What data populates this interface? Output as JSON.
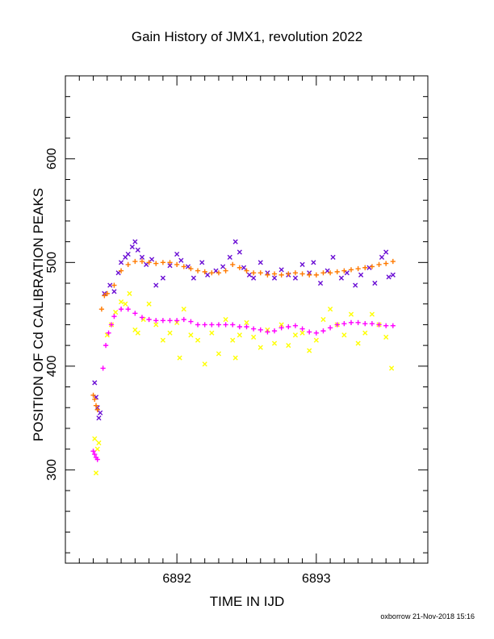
{
  "colors": {
    "frame": "#000000",
    "purple": "#6a0dd4",
    "orange": "#ff7a00",
    "yellow": "#ffff00",
    "magenta": "#ff00ff"
  },
  "chart_data": {
    "type": "scatter",
    "title": "Gain History of JMX1, revolution 2022",
    "xlabel": "TIME IN IJD",
    "ylabel": "POSITION OF Cd CALIBRATION PEAKS",
    "xlim": [
      6891.2,
      6893.8
    ],
    "ylim": [
      210,
      680
    ],
    "x_ticks": [
      6892,
      6893
    ],
    "y_ticks": [
      300,
      400,
      500,
      600
    ],
    "grid": false,
    "series": [
      {
        "marker": "x",
        "color": "#6a0dd4",
        "points": [
          [
            6891.41,
            384
          ],
          [
            6891.42,
            370
          ],
          [
            6891.43,
            360
          ],
          [
            6891.44,
            350
          ],
          [
            6891.45,
            355
          ],
          [
            6891.48,
            470
          ],
          [
            6891.52,
            478
          ],
          [
            6891.55,
            472
          ],
          [
            6891.58,
            490
          ],
          [
            6891.6,
            500
          ],
          [
            6891.63,
            505
          ],
          [
            6891.65,
            508
          ],
          [
            6891.68,
            515
          ],
          [
            6891.7,
            520
          ],
          [
            6891.72,
            512
          ],
          [
            6891.75,
            505
          ],
          [
            6891.78,
            498
          ],
          [
            6891.82,
            503
          ],
          [
            6891.85,
            478
          ],
          [
            6891.9,
            485
          ],
          [
            6891.95,
            497
          ],
          [
            6892.0,
            508
          ],
          [
            6892.03,
            502
          ],
          [
            6892.08,
            496
          ],
          [
            6892.12,
            485
          ],
          [
            6892.18,
            500
          ],
          [
            6892.22,
            488
          ],
          [
            6892.28,
            492
          ],
          [
            6892.33,
            496
          ],
          [
            6892.38,
            505
          ],
          [
            6892.42,
            520
          ],
          [
            6892.45,
            510
          ],
          [
            6892.48,
            495
          ],
          [
            6892.52,
            488
          ],
          [
            6892.55,
            485
          ],
          [
            6892.6,
            500
          ],
          [
            6892.65,
            490
          ],
          [
            6892.7,
            485
          ],
          [
            6892.75,
            493
          ],
          [
            6892.8,
            488
          ],
          [
            6892.85,
            485
          ],
          [
            6892.9,
            498
          ],
          [
            6892.95,
            490
          ],
          [
            6892.98,
            500
          ],
          [
            6893.03,
            480
          ],
          [
            6893.08,
            492
          ],
          [
            6893.12,
            505
          ],
          [
            6893.18,
            485
          ],
          [
            6893.22,
            490
          ],
          [
            6893.28,
            478
          ],
          [
            6893.32,
            488
          ],
          [
            6893.38,
            495
          ],
          [
            6893.42,
            480
          ],
          [
            6893.47,
            505
          ],
          [
            6893.5,
            510
          ],
          [
            6893.52,
            486
          ],
          [
            6893.55,
            488
          ]
        ]
      },
      {
        "marker": "x",
        "color": "#ffff00",
        "points": [
          [
            6891.41,
            330
          ],
          [
            6891.42,
            297
          ],
          [
            6891.43,
            320
          ],
          [
            6891.44,
            326
          ],
          [
            6891.5,
            430
          ],
          [
            6891.53,
            440
          ],
          [
            6891.56,
            452
          ],
          [
            6891.6,
            462
          ],
          [
            6891.63,
            460
          ],
          [
            6891.66,
            470
          ],
          [
            6891.7,
            435
          ],
          [
            6891.72,
            432
          ],
          [
            6891.76,
            445
          ],
          [
            6891.8,
            460
          ],
          [
            6891.85,
            440
          ],
          [
            6891.9,
            425
          ],
          [
            6891.95,
            432
          ],
          [
            6892.0,
            442
          ],
          [
            6892.02,
            408
          ],
          [
            6892.05,
            455
          ],
          [
            6892.1,
            430
          ],
          [
            6892.15,
            425
          ],
          [
            6892.2,
            402
          ],
          [
            6892.25,
            432
          ],
          [
            6892.3,
            412
          ],
          [
            6892.35,
            445
          ],
          [
            6892.4,
            425
          ],
          [
            6892.42,
            408
          ],
          [
            6892.45,
            430
          ],
          [
            6892.5,
            442
          ],
          [
            6892.55,
            428
          ],
          [
            6892.6,
            418
          ],
          [
            6892.65,
            435
          ],
          [
            6892.7,
            422
          ],
          [
            6892.75,
            440
          ],
          [
            6892.8,
            420
          ],
          [
            6892.85,
            430
          ],
          [
            6892.9,
            432
          ],
          [
            6892.95,
            415
          ],
          [
            6893.0,
            425
          ],
          [
            6893.05,
            445
          ],
          [
            6893.1,
            455
          ],
          [
            6893.15,
            440
          ],
          [
            6893.2,
            430
          ],
          [
            6893.25,
            450
          ],
          [
            6893.3,
            422
          ],
          [
            6893.35,
            432
          ],
          [
            6893.4,
            450
          ],
          [
            6893.45,
            440
          ],
          [
            6893.5,
            428
          ],
          [
            6893.54,
            398
          ]
        ]
      },
      {
        "marker": "+",
        "color": "#ff7a00",
        "points": [
          [
            6891.4,
            372
          ],
          [
            6891.41,
            368
          ],
          [
            6891.42,
            362
          ],
          [
            6891.43,
            358
          ],
          [
            6891.46,
            455
          ],
          [
            6891.48,
            468
          ],
          [
            6891.5,
            470
          ],
          [
            6891.55,
            478
          ],
          [
            6891.6,
            492
          ],
          [
            6891.65,
            498
          ],
          [
            6891.7,
            501
          ],
          [
            6891.75,
            501
          ],
          [
            6891.8,
            500
          ],
          [
            6891.85,
            499
          ],
          [
            6891.9,
            500
          ],
          [
            6891.95,
            500
          ],
          [
            6892.0,
            498
          ],
          [
            6892.05,
            496
          ],
          [
            6892.1,
            494
          ],
          [
            6892.15,
            492
          ],
          [
            6892.2,
            491
          ],
          [
            6892.25,
            490
          ],
          [
            6892.3,
            490
          ],
          [
            6892.35,
            492
          ],
          [
            6892.4,
            498
          ],
          [
            6892.45,
            495
          ],
          [
            6892.5,
            492
          ],
          [
            6892.55,
            490
          ],
          [
            6892.6,
            490
          ],
          [
            6892.65,
            488
          ],
          [
            6892.7,
            489
          ],
          [
            6892.75,
            488
          ],
          [
            6892.8,
            489
          ],
          [
            6892.85,
            490
          ],
          [
            6892.9,
            489
          ],
          [
            6892.95,
            488
          ],
          [
            6893.0,
            488
          ],
          [
            6893.05,
            490
          ],
          [
            6893.1,
            490
          ],
          [
            6893.15,
            491
          ],
          [
            6893.2,
            492
          ],
          [
            6893.25,
            493
          ],
          [
            6893.3,
            494
          ],
          [
            6893.35,
            495
          ],
          [
            6893.4,
            496
          ],
          [
            6893.45,
            498
          ],
          [
            6893.5,
            499
          ],
          [
            6893.55,
            501
          ]
        ]
      },
      {
        "marker": "+",
        "color": "#ff00ff",
        "points": [
          [
            6891.4,
            318
          ],
          [
            6891.41,
            315
          ],
          [
            6891.42,
            312
          ],
          [
            6891.43,
            310
          ],
          [
            6891.47,
            398
          ],
          [
            6891.49,
            420
          ],
          [
            6891.51,
            432
          ],
          [
            6891.53,
            440
          ],
          [
            6891.55,
            448
          ],
          [
            6891.6,
            455
          ],
          [
            6891.65,
            455
          ],
          [
            6891.7,
            451
          ],
          [
            6891.75,
            447
          ],
          [
            6891.8,
            445
          ],
          [
            6891.85,
            444
          ],
          [
            6891.9,
            444
          ],
          [
            6891.95,
            444
          ],
          [
            6892.0,
            444
          ],
          [
            6892.05,
            445
          ],
          [
            6892.1,
            443
          ],
          [
            6892.15,
            440
          ],
          [
            6892.2,
            440
          ],
          [
            6892.25,
            440
          ],
          [
            6892.3,
            440
          ],
          [
            6892.35,
            440
          ],
          [
            6892.4,
            440
          ],
          [
            6892.45,
            438
          ],
          [
            6892.5,
            438
          ],
          [
            6892.55,
            436
          ],
          [
            6892.6,
            435
          ],
          [
            6892.65,
            433
          ],
          [
            6892.7,
            434
          ],
          [
            6892.75,
            437
          ],
          [
            6892.8,
            438
          ],
          [
            6892.85,
            439
          ],
          [
            6892.9,
            436
          ],
          [
            6892.95,
            433
          ],
          [
            6893.0,
            432
          ],
          [
            6893.05,
            434
          ],
          [
            6893.1,
            437
          ],
          [
            6893.15,
            440
          ],
          [
            6893.2,
            441
          ],
          [
            6893.25,
            442
          ],
          [
            6893.3,
            442
          ],
          [
            6893.35,
            441
          ],
          [
            6893.4,
            441
          ],
          [
            6893.45,
            440
          ],
          [
            6893.5,
            439
          ],
          [
            6893.55,
            439
          ]
        ]
      }
    ]
  },
  "footer": "oxborrow 21-Nov-2018 15:16"
}
